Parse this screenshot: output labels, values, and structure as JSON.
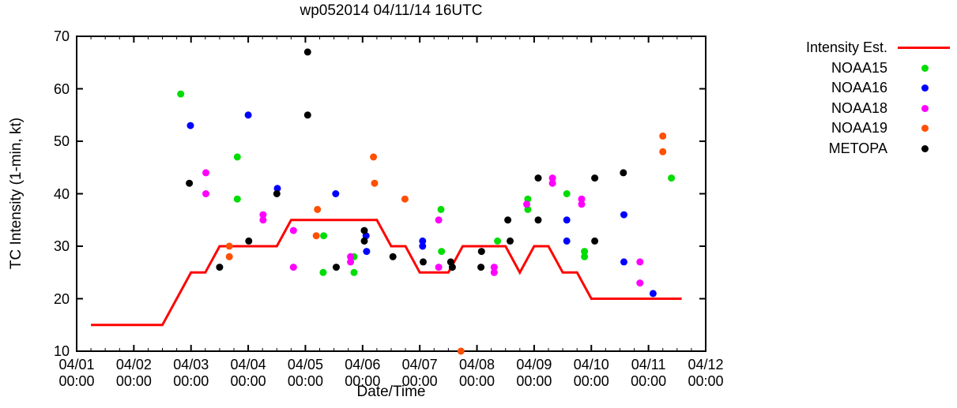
{
  "chart_data": {
    "type": "scatter",
    "title": "wp052014 04/11/14 16UTC",
    "xlabel": "Date/Time",
    "ylabel": "TC Intensity (1-min, kt)",
    "ylim": [
      10,
      70
    ],
    "yticks": [
      10,
      20,
      30,
      40,
      50,
      60,
      70
    ],
    "xticks": [
      {
        "day": 1,
        "label_date": "04/01",
        "label_time": "00:00"
      },
      {
        "day": 2,
        "label_date": "04/02",
        "label_time": "00:00"
      },
      {
        "day": 3,
        "label_date": "04/03",
        "label_time": "00:00"
      },
      {
        "day": 4,
        "label_date": "04/04",
        "label_time": "00:00"
      },
      {
        "day": 5,
        "label_date": "04/05",
        "label_time": "00:00"
      },
      {
        "day": 6,
        "label_date": "04/06",
        "label_time": "00:00"
      },
      {
        "day": 7,
        "label_date": "04/07",
        "label_time": "00:00"
      },
      {
        "day": 8,
        "label_date": "04/08",
        "label_time": "00:00"
      },
      {
        "day": 9,
        "label_date": "04/09",
        "label_time": "00:00"
      },
      {
        "day": 10,
        "label_date": "04/10",
        "label_time": "00:00"
      },
      {
        "day": 11,
        "label_date": "04/11",
        "label_time": "00:00"
      },
      {
        "day": 12,
        "label_date": "04/12",
        "label_time": "00:00"
      }
    ],
    "minor_xtick_hours": 6,
    "grid": false,
    "legend_position": "right-outside",
    "line_series": {
      "name": "Intensity Est.",
      "color": "#ff0000",
      "points": [
        [
          1.25,
          15
        ],
        [
          2.5,
          15
        ],
        [
          3.0,
          25
        ],
        [
          3.25,
          25
        ],
        [
          3.5,
          30
        ],
        [
          4.5,
          30
        ],
        [
          4.75,
          35
        ],
        [
          6.25,
          35
        ],
        [
          6.5,
          30
        ],
        [
          6.75,
          30
        ],
        [
          7.0,
          25
        ],
        [
          7.5,
          25
        ],
        [
          7.75,
          30
        ],
        [
          8.5,
          30
        ],
        [
          8.75,
          25
        ],
        [
          9.0,
          30
        ],
        [
          9.25,
          30
        ],
        [
          9.5,
          25
        ],
        [
          9.75,
          25
        ],
        [
          10.0,
          20
        ],
        [
          11.58,
          20
        ]
      ]
    },
    "scatter_series": [
      {
        "name": "NOAA15",
        "color": "#00dd00",
        "points": [
          [
            2.82,
            59
          ],
          [
            3.81,
            47
          ],
          [
            3.81,
            39
          ],
          [
            5.31,
            25
          ],
          [
            5.32,
            32
          ],
          [
            5.85,
            28
          ],
          [
            5.85,
            25
          ],
          [
            7.37,
            37
          ],
          [
            7.38,
            29
          ],
          [
            8.36,
            31
          ],
          [
            8.89,
            39
          ],
          [
            8.89,
            37
          ],
          [
            9.57,
            40
          ],
          [
            9.88,
            29
          ],
          [
            9.88,
            28
          ],
          [
            11.4,
            43
          ]
        ]
      },
      {
        "name": "NOAA16",
        "color": "#0000ff",
        "points": [
          [
            2.99,
            53
          ],
          [
            4.0,
            55
          ],
          [
            4.51,
            41
          ],
          [
            5.53,
            40
          ],
          [
            6.06,
            32
          ],
          [
            6.07,
            29
          ],
          [
            7.05,
            31
          ],
          [
            7.05,
            30
          ],
          [
            9.57,
            35
          ],
          [
            9.57,
            31
          ],
          [
            10.57,
            36
          ],
          [
            10.57,
            27
          ],
          [
            11.08,
            21
          ]
        ]
      },
      {
        "name": "NOAA18",
        "color": "#ff00ff",
        "points": [
          [
            3.26,
            44
          ],
          [
            3.26,
            40
          ],
          [
            4.26,
            36
          ],
          [
            4.26,
            35
          ],
          [
            4.79,
            33
          ],
          [
            4.79,
            26
          ],
          [
            5.79,
            28
          ],
          [
            5.79,
            27
          ],
          [
            7.33,
            35
          ],
          [
            7.33,
            26
          ],
          [
            8.3,
            26
          ],
          [
            8.3,
            25
          ],
          [
            8.87,
            38
          ],
          [
            9.32,
            43
          ],
          [
            9.32,
            42
          ],
          [
            9.83,
            39
          ],
          [
            9.83,
            38
          ],
          [
            10.85,
            27
          ],
          [
            10.85,
            23
          ]
        ]
      },
      {
        "name": "NOAA19",
        "color": "#ff4f00",
        "points": [
          [
            3.67,
            30
          ],
          [
            3.67,
            28
          ],
          [
            5.19,
            32
          ],
          [
            5.21,
            37
          ],
          [
            6.19,
            47
          ],
          [
            6.21,
            42
          ],
          [
            6.74,
            39
          ],
          [
            7.72,
            10
          ],
          [
            11.25,
            51
          ],
          [
            11.25,
            48
          ]
        ]
      },
      {
        "name": "METOPA",
        "color": "#000000",
        "points": [
          [
            2.97,
            42
          ],
          [
            3.5,
            26
          ],
          [
            4.01,
            31
          ],
          [
            4.5,
            40
          ],
          [
            5.04,
            67
          ],
          [
            5.04,
            55
          ],
          [
            5.54,
            26
          ],
          [
            6.03,
            33
          ],
          [
            6.03,
            31
          ],
          [
            6.53,
            28
          ],
          [
            7.06,
            27
          ],
          [
            7.54,
            27
          ],
          [
            7.57,
            26
          ],
          [
            8.07,
            26
          ],
          [
            8.08,
            29
          ],
          [
            8.54,
            35
          ],
          [
            8.58,
            31
          ],
          [
            9.07,
            43
          ],
          [
            9.07,
            35
          ],
          [
            10.06,
            43
          ],
          [
            10.06,
            31
          ],
          [
            10.56,
            44
          ]
        ]
      }
    ]
  }
}
